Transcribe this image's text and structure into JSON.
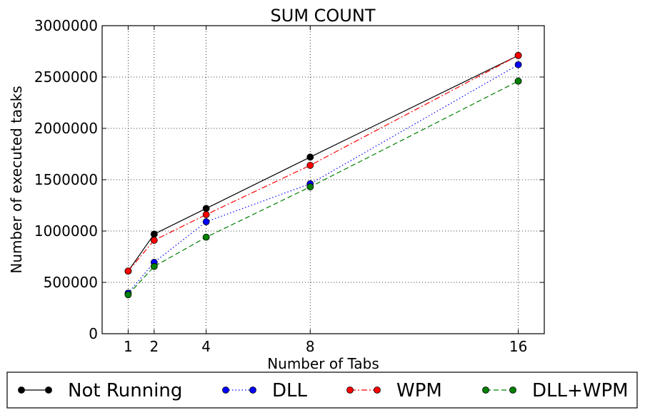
{
  "chart_data": {
    "type": "line",
    "title": "SUM COUNT",
    "xlabel": "Number of Tabs",
    "ylabel": "Number of executed tasks",
    "x": [
      1,
      2,
      4,
      8,
      16
    ],
    "xlim": [
      0,
      17
    ],
    "ylim": [
      0,
      3000000
    ],
    "xticks": [
      1,
      2,
      4,
      8,
      16
    ],
    "yticks": [
      0,
      500000,
      1000000,
      1500000,
      2000000,
      2500000,
      3000000
    ],
    "grid": true,
    "legend_position": "bottom",
    "series": [
      {
        "name": "Not Running",
        "color": "#000000",
        "linestyle": "solid",
        "values": [
          610000,
          970000,
          1220000,
          1720000,
          2710000
        ]
      },
      {
        "name": "DLL",
        "color": "#0000ff",
        "linestyle": "dotted",
        "values": [
          395000,
          695000,
          1090000,
          1460000,
          2620000
        ]
      },
      {
        "name": "WPM",
        "color": "#ff0000",
        "linestyle": "dashdot",
        "values": [
          610000,
          910000,
          1160000,
          1640000,
          2710000
        ]
      },
      {
        "name": "DLL+WPM",
        "color": "#008000",
        "linestyle": "dashed",
        "values": [
          380000,
          655000,
          940000,
          1430000,
          2460000
        ]
      }
    ]
  }
}
